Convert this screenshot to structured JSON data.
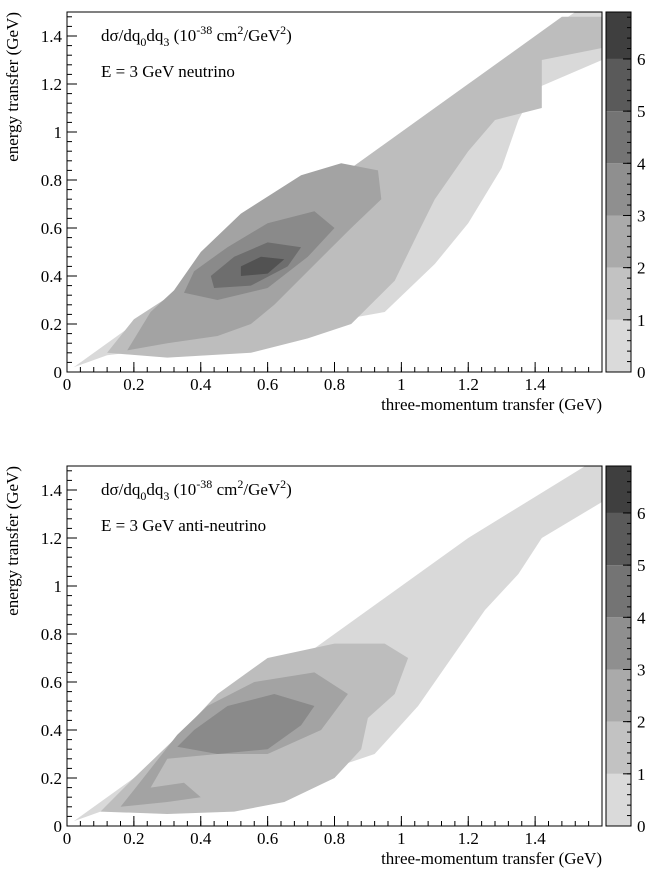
{
  "chart_data": [
    {
      "type": "contour",
      "title_prefix": "dσ/dq",
      "title_sub0": "0",
      "title_mid": "dq",
      "title_sub3": "3",
      "title_unit_open": " (10",
      "title_exp": "-38",
      "title_unit_mid": " cm",
      "title_exp2": "2",
      "title_unit_gev": "/GeV",
      "title_exp3": "2",
      "title_unit_close": ")",
      "subtitle": "E = 3 GeV neutrino",
      "xlabel": "three-momentum transfer (GeV)",
      "ylabel": "energy transfer (GeV)",
      "xlim": [
        0,
        1.6
      ],
      "ylim": [
        0,
        1.5
      ],
      "x_ticks": [
        "0",
        "0.2",
        "0.4",
        "0.6",
        "0.8",
        "1",
        "1.2",
        "1.4"
      ],
      "y_ticks": [
        "0",
        "0.2",
        "0.4",
        "0.6",
        "0.8",
        "1",
        "1.2",
        "1.4"
      ],
      "z_levels": [
        0,
        1,
        2,
        3,
        4,
        5,
        6
      ],
      "z_ticks": [
        "0",
        "1",
        "2",
        "3",
        "4",
        "5",
        "6"
      ],
      "contours": [
        {
          "level": 1,
          "points": [
            [
              0.02,
              0.02
            ],
            [
              0.12,
              0.07
            ],
            [
              0.3,
              0.1
            ],
            [
              0.5,
              0.15
            ],
            [
              0.75,
              0.2
            ],
            [
              0.95,
              0.25
            ],
            [
              1.1,
              0.45
            ],
            [
              1.2,
              0.62
            ],
            [
              1.3,
              0.85
            ],
            [
              1.35,
              1.05
            ],
            [
              1.4,
              1.18
            ],
            [
              1.6,
              1.3
            ],
            [
              1.6,
              1.5
            ],
            [
              1.52,
              1.5
            ],
            [
              1.2,
              1.2
            ],
            [
              0.9,
              0.9
            ],
            [
              0.5,
              0.5
            ],
            [
              0.2,
              0.2
            ]
          ]
        },
        {
          "level": 2,
          "points": [
            [
              0.12,
              0.08
            ],
            [
              0.3,
              0.06
            ],
            [
              0.55,
              0.08
            ],
            [
              0.72,
              0.14
            ],
            [
              0.85,
              0.2
            ],
            [
              0.98,
              0.38
            ],
            [
              1.05,
              0.58
            ],
            [
              1.1,
              0.72
            ],
            [
              1.2,
              0.92
            ],
            [
              1.28,
              1.05
            ],
            [
              1.42,
              1.1
            ],
            [
              1.42,
              1.3
            ],
            [
              1.6,
              1.35
            ],
            [
              1.6,
              1.48
            ],
            [
              1.48,
              1.48
            ],
            [
              1.1,
              1.1
            ],
            [
              0.7,
              0.7
            ],
            [
              0.4,
              0.4
            ],
            [
              0.2,
              0.22
            ]
          ]
        },
        {
          "level": 3,
          "points": [
            [
              0.18,
              0.09
            ],
            [
              0.3,
              0.12
            ],
            [
              0.45,
              0.15
            ],
            [
              0.55,
              0.2
            ],
            [
              0.62,
              0.28
            ],
            [
              0.72,
              0.42
            ],
            [
              0.85,
              0.6
            ],
            [
              0.94,
              0.72
            ],
            [
              0.93,
              0.84
            ],
            [
              0.82,
              0.87
            ],
            [
              0.7,
              0.82
            ],
            [
              0.52,
              0.66
            ],
            [
              0.4,
              0.5
            ],
            [
              0.32,
              0.34
            ],
            [
              0.25,
              0.25
            ]
          ]
        },
        {
          "level": 4,
          "points": [
            [
              0.35,
              0.33
            ],
            [
              0.45,
              0.3
            ],
            [
              0.6,
              0.35
            ],
            [
              0.72,
              0.48
            ],
            [
              0.8,
              0.6
            ],
            [
              0.74,
              0.67
            ],
            [
              0.6,
              0.62
            ],
            [
              0.48,
              0.52
            ],
            [
              0.38,
              0.42
            ]
          ]
        },
        {
          "level": 5,
          "points": [
            [
              0.44,
              0.35
            ],
            [
              0.55,
              0.36
            ],
            [
              0.66,
              0.44
            ],
            [
              0.7,
              0.52
            ],
            [
              0.6,
              0.54
            ],
            [
              0.5,
              0.48
            ],
            [
              0.43,
              0.4
            ]
          ]
        },
        {
          "level": 6,
          "points": [
            [
              0.52,
              0.4
            ],
            [
              0.6,
              0.41
            ],
            [
              0.65,
              0.47
            ],
            [
              0.58,
              0.48
            ],
            [
              0.52,
              0.44
            ]
          ]
        }
      ]
    },
    {
      "type": "contour",
      "title_prefix": "dσ/dq",
      "title_sub0": "0",
      "title_mid": "dq",
      "title_sub3": "3",
      "title_unit_open": " (10",
      "title_exp": "-38",
      "title_unit_mid": " cm",
      "title_exp2": "2",
      "title_unit_gev": "/GeV",
      "title_exp3": "2",
      "title_unit_close": ")",
      "subtitle": "E = 3 GeV anti-neutrino",
      "xlabel": "three-momentum transfer (GeV)",
      "ylabel": "energy transfer (GeV)",
      "xlim": [
        0,
        1.6
      ],
      "ylim": [
        0,
        1.5
      ],
      "x_ticks": [
        "0",
        "0.2",
        "0.4",
        "0.6",
        "0.8",
        "1",
        "1.2",
        "1.4"
      ],
      "y_ticks": [
        "0",
        "0.2",
        "0.4",
        "0.6",
        "0.8",
        "1",
        "1.2",
        "1.4"
      ],
      "z_levels": [
        0,
        1,
        2,
        3,
        4,
        5,
        6
      ],
      "z_ticks": [
        "0",
        "1",
        "2",
        "3",
        "4",
        "5",
        "6"
      ],
      "contours": [
        {
          "level": 1,
          "points": [
            [
              0.02,
              0.02
            ],
            [
              0.12,
              0.07
            ],
            [
              0.3,
              0.1
            ],
            [
              0.5,
              0.15
            ],
            [
              0.75,
              0.22
            ],
            [
              0.92,
              0.3
            ],
            [
              1.05,
              0.5
            ],
            [
              1.15,
              0.7
            ],
            [
              1.25,
              0.9
            ],
            [
              1.35,
              1.05
            ],
            [
              1.42,
              1.2
            ],
            [
              1.6,
              1.35
            ],
            [
              1.6,
              1.5
            ],
            [
              1.55,
              1.5
            ],
            [
              1.2,
              1.2
            ],
            [
              0.9,
              0.9
            ],
            [
              0.5,
              0.5
            ],
            [
              0.2,
              0.2
            ]
          ]
        },
        {
          "level": 2,
          "points": [
            [
              0.1,
              0.06
            ],
            [
              0.3,
              0.05
            ],
            [
              0.5,
              0.06
            ],
            [
              0.65,
              0.1
            ],
            [
              0.8,
              0.2
            ],
            [
              0.88,
              0.32
            ],
            [
              0.9,
              0.45
            ],
            [
              0.98,
              0.55
            ],
            [
              1.02,
              0.7
            ],
            [
              0.95,
              0.76
            ],
            [
              0.8,
              0.76
            ],
            [
              0.6,
              0.7
            ],
            [
              0.45,
              0.55
            ],
            [
              0.35,
              0.4
            ],
            [
              0.2,
              0.2
            ]
          ]
        },
        {
          "level": 3,
          "points": [
            [
              0.16,
              0.08
            ],
            [
              0.3,
              0.1
            ],
            [
              0.4,
              0.12
            ],
            [
              0.35,
              0.18
            ],
            [
              0.25,
              0.16
            ],
            [
              0.3,
              0.28
            ],
            [
              0.45,
              0.3
            ],
            [
              0.6,
              0.3
            ],
            [
              0.76,
              0.4
            ],
            [
              0.84,
              0.55
            ],
            [
              0.74,
              0.64
            ],
            [
              0.56,
              0.6
            ],
            [
              0.42,
              0.5
            ],
            [
              0.33,
              0.38
            ],
            [
              0.2,
              0.15
            ]
          ]
        },
        {
          "level": 4,
          "points": [
            [
              0.33,
              0.33
            ],
            [
              0.45,
              0.3
            ],
            [
              0.6,
              0.32
            ],
            [
              0.7,
              0.42
            ],
            [
              0.74,
              0.5
            ],
            [
              0.62,
              0.55
            ],
            [
              0.48,
              0.5
            ],
            [
              0.38,
              0.4
            ]
          ]
        }
      ]
    }
  ]
}
